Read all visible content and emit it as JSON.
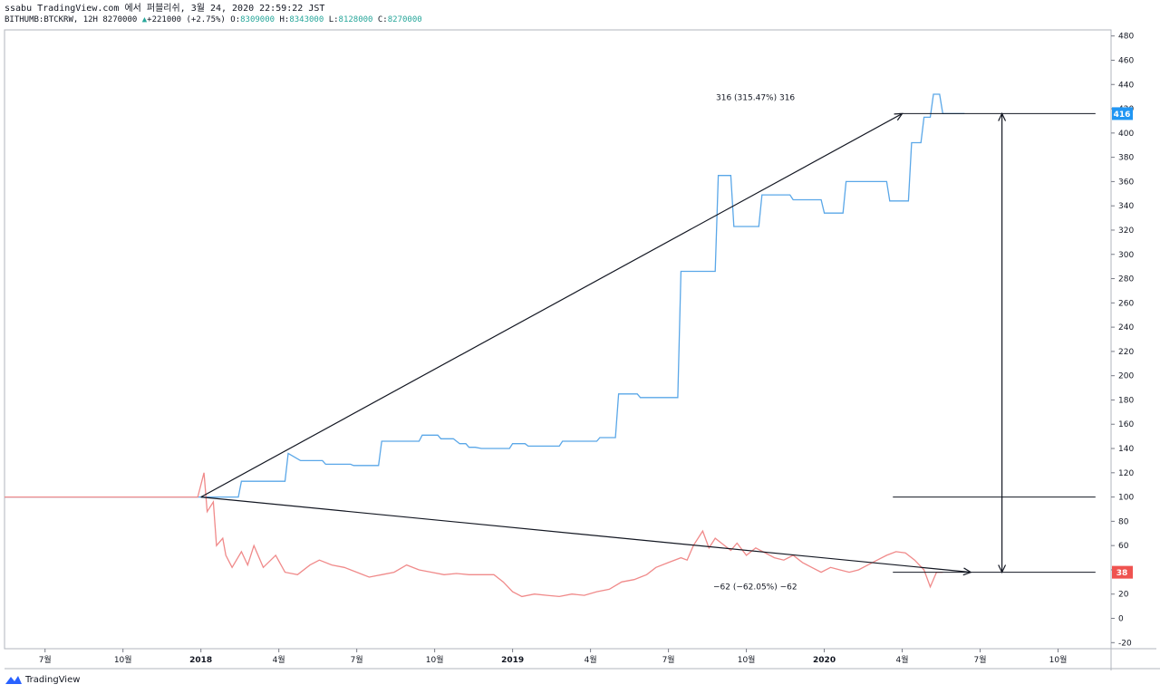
{
  "header": {
    "line1": "ssabu TradingView.com 에서 퍼블리쉬, 3월 24, 2020 22:59:22 JST",
    "symbol": "BITHUMB:BTCKRW, 12H",
    "last": "8270000",
    "change": "+221000 (+2.75%)",
    "o_label": "O:",
    "o": "8309000",
    "h_label": "H:",
    "h": "8343000",
    "l_label": "L:",
    "l": "8128000",
    "c_label": "C:",
    "c": "8270000"
  },
  "footer": {
    "brand": "TradingView",
    "icon": "tradingview-logo-icon"
  },
  "colors": {
    "blue": "#5aa7e8",
    "red": "#f08a8a",
    "badge_blue": "#2196f3",
    "badge_red": "#ef5350",
    "arrow": "#131722"
  },
  "chart_data": {
    "type": "line",
    "x_axis": {
      "ticks": [
        "7월",
        "10월",
        "2018",
        "4월",
        "7월",
        "10월",
        "2019",
        "4월",
        "7월",
        "10월",
        "2020",
        "4월",
        "7월",
        "10월"
      ],
      "range": [
        2017.37,
        2020.92
      ]
    },
    "y_axis": {
      "ticks": [
        480,
        460,
        440,
        420,
        400,
        380,
        360,
        340,
        320,
        300,
        280,
        260,
        240,
        220,
        200,
        180,
        160,
        140,
        120,
        100,
        80,
        60,
        40,
        20,
        0,
        -20
      ],
      "range": [
        -25,
        485
      ]
    },
    "series": [
      {
        "color": "blue",
        "step": true,
        "points": [
          [
            2017.37,
            100
          ],
          [
            2018.0,
            100
          ],
          [
            2018.12,
            100
          ],
          [
            2018.13,
            113
          ],
          [
            2018.27,
            113
          ],
          [
            2018.28,
            136
          ],
          [
            2018.32,
            130
          ],
          [
            2018.39,
            130
          ],
          [
            2018.4,
            127
          ],
          [
            2018.48,
            127
          ],
          [
            2018.49,
            126
          ],
          [
            2018.57,
            126
          ],
          [
            2018.58,
            146
          ],
          [
            2018.7,
            146
          ],
          [
            2018.71,
            151
          ],
          [
            2018.76,
            151
          ],
          [
            2018.77,
            148
          ],
          [
            2018.81,
            148
          ],
          [
            2018.83,
            144
          ],
          [
            2018.85,
            144
          ],
          [
            2018.86,
            141
          ],
          [
            2018.88,
            141
          ],
          [
            2018.9,
            140
          ],
          [
            2018.99,
            140
          ],
          [
            2019.0,
            144
          ],
          [
            2019.04,
            144
          ],
          [
            2019.05,
            142
          ],
          [
            2019.15,
            142
          ],
          [
            2019.16,
            146
          ],
          [
            2019.27,
            146
          ],
          [
            2019.28,
            149
          ],
          [
            2019.33,
            149
          ],
          [
            2019.34,
            185
          ],
          [
            2019.4,
            185
          ],
          [
            2019.41,
            182
          ],
          [
            2019.53,
            182
          ],
          [
            2019.54,
            286
          ],
          [
            2019.65,
            286
          ],
          [
            2019.66,
            365
          ],
          [
            2019.7,
            365
          ],
          [
            2019.71,
            323
          ],
          [
            2019.79,
            323
          ],
          [
            2019.8,
            349
          ],
          [
            2019.89,
            349
          ],
          [
            2019.9,
            345
          ],
          [
            2019.99,
            345
          ],
          [
            2020.0,
            334
          ],
          [
            2020.06,
            334
          ],
          [
            2020.07,
            360
          ],
          [
            2020.2,
            360
          ],
          [
            2020.21,
            344
          ],
          [
            2020.27,
            344
          ],
          [
            2020.28,
            392
          ],
          [
            2020.31,
            392
          ],
          [
            2020.32,
            413
          ],
          [
            2020.34,
            413
          ],
          [
            2020.35,
            432
          ],
          [
            2020.37,
            432
          ],
          [
            2020.38,
            416
          ],
          [
            2020.45,
            416
          ]
        ]
      },
      {
        "color": "red",
        "step": false,
        "points": [
          [
            2017.37,
            100
          ],
          [
            2017.99,
            100
          ],
          [
            2018.01,
            120
          ],
          [
            2018.02,
            88
          ],
          [
            2018.04,
            96
          ],
          [
            2018.05,
            60
          ],
          [
            2018.07,
            66
          ],
          [
            2018.08,
            52
          ],
          [
            2018.1,
            42
          ],
          [
            2018.13,
            55
          ],
          [
            2018.15,
            44
          ],
          [
            2018.17,
            60
          ],
          [
            2018.2,
            42
          ],
          [
            2018.24,
            52
          ],
          [
            2018.27,
            38
          ],
          [
            2018.31,
            36
          ],
          [
            2018.35,
            44
          ],
          [
            2018.38,
            48
          ],
          [
            2018.42,
            44
          ],
          [
            2018.46,
            42
          ],
          [
            2018.5,
            38
          ],
          [
            2018.54,
            34
          ],
          [
            2018.58,
            36
          ],
          [
            2018.62,
            38
          ],
          [
            2018.66,
            44
          ],
          [
            2018.7,
            40
          ],
          [
            2018.74,
            38
          ],
          [
            2018.78,
            36
          ],
          [
            2018.82,
            37
          ],
          [
            2018.86,
            36
          ],
          [
            2018.9,
            36
          ],
          [
            2018.94,
            36
          ],
          [
            2018.97,
            30
          ],
          [
            2019.0,
            22
          ],
          [
            2019.03,
            18
          ],
          [
            2019.07,
            20
          ],
          [
            2019.11,
            19
          ],
          [
            2019.15,
            18
          ],
          [
            2019.19,
            20
          ],
          [
            2019.23,
            19
          ],
          [
            2019.27,
            22
          ],
          [
            2019.31,
            24
          ],
          [
            2019.35,
            30
          ],
          [
            2019.39,
            32
          ],
          [
            2019.43,
            36
          ],
          [
            2019.46,
            42
          ],
          [
            2019.5,
            46
          ],
          [
            2019.54,
            50
          ],
          [
            2019.56,
            48
          ],
          [
            2019.58,
            60
          ],
          [
            2019.61,
            72
          ],
          [
            2019.63,
            58
          ],
          [
            2019.65,
            66
          ],
          [
            2019.67,
            62
          ],
          [
            2019.7,
            56
          ],
          [
            2019.72,
            62
          ],
          [
            2019.75,
            52
          ],
          [
            2019.78,
            58
          ],
          [
            2019.81,
            54
          ],
          [
            2019.84,
            50
          ],
          [
            2019.87,
            48
          ],
          [
            2019.9,
            52
          ],
          [
            2019.93,
            46
          ],
          [
            2019.96,
            42
          ],
          [
            2019.99,
            38
          ],
          [
            2020.02,
            42
          ],
          [
            2020.05,
            40
          ],
          [
            2020.08,
            38
          ],
          [
            2020.11,
            40
          ],
          [
            2020.14,
            44
          ],
          [
            2020.17,
            48
          ],
          [
            2020.2,
            52
          ],
          [
            2020.23,
            55
          ],
          [
            2020.26,
            54
          ],
          [
            2020.29,
            48
          ],
          [
            2020.32,
            40
          ],
          [
            2020.34,
            26
          ],
          [
            2020.36,
            38
          ],
          [
            2020.38,
            38
          ]
        ]
      }
    ],
    "annotations": {
      "upper_label": "316 (315.47%) 316",
      "lower_label": "−62 (−62.05%) −62",
      "upper_arrow": {
        "from": [
          2018.0,
          100
        ],
        "to": [
          2020.25,
          416
        ]
      },
      "lower_arrow": {
        "from": [
          2018.0,
          100
        ],
        "to": [
          2020.47,
          38
        ]
      },
      "level_lines": [
        {
          "y": 416,
          "from": 2020.24,
          "to": 2020.87
        },
        {
          "y": 100,
          "from": 2020.22,
          "to": 2020.87
        },
        {
          "y": 38,
          "from": 2020.22,
          "to": 2020.87
        }
      ],
      "measure_up": {
        "x": 2020.57,
        "from": 100,
        "to": 416
      },
      "measure_down": {
        "x": 2020.57,
        "from": 100,
        "to": 38
      }
    },
    "badges": [
      {
        "value": 416,
        "label": "416",
        "color": "badge_blue"
      },
      {
        "value": 38,
        "label": "38",
        "color": "badge_red"
      }
    ]
  }
}
